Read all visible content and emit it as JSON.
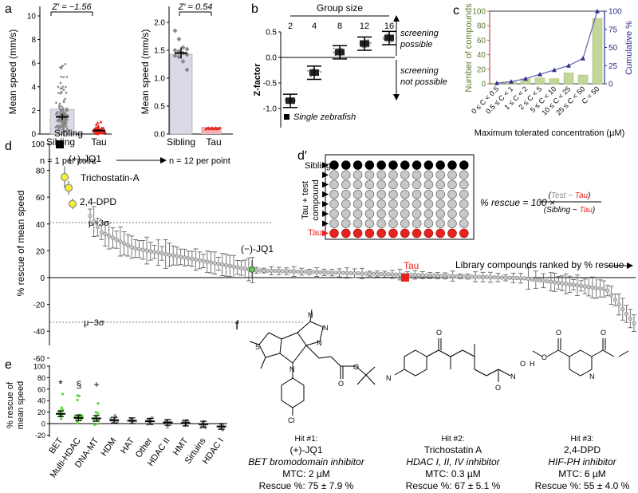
{
  "panels": {
    "a": {
      "label": "a",
      "plot1": {
        "zprime": "Z′ = −1.56",
        "ylabel": "Mean speed (mm/s)",
        "yticks": [
          "0",
          "2",
          "4",
          "6",
          "8",
          "10"
        ],
        "categories": [
          "Sibling",
          "Tau"
        ]
      },
      "plot2": {
        "zprime": "Z′ = 0.54",
        "ylabel": "Mean speed (mm/s)",
        "yticks": [
          "0.0",
          "0.5",
          "1.0",
          "1.5",
          "2.0"
        ],
        "categories": [
          "Sibling",
          "Tau"
        ]
      },
      "n_left": "n = 1 per point",
      "n_right": "n = 12 per point"
    },
    "b": {
      "label": "b",
      "group_size_label": "Group size",
      "ylabel": "Z-factor",
      "xticks": [
        "2",
        "4",
        "8",
        "12",
        "16"
      ],
      "yticks": [
        "-1.0",
        "-0.5",
        "0.0",
        "0.5"
      ],
      "screening_possible": [
        "screening",
        "possible"
      ],
      "screening_not_possible": [
        "screening",
        "not possible"
      ],
      "legend": "Single zebrafish"
    },
    "c": {
      "label": "c",
      "ylabel_left": "Number of compounds",
      "ylabel_right": "Cumulative %",
      "xlabel": "Maximum tolerated concentration (µM)",
      "yticks_left": [
        "0",
        "20",
        "40",
        "60",
        "80",
        "100"
      ],
      "yticks_right": [
        "0",
        "25",
        "50",
        "75",
        "100"
      ],
      "categories": [
        "0 ≤ C < 0.5",
        "0.5 ≤ C < 1",
        "1 ≤ C < 2",
        "2 ≤ C < 5",
        "5 ≤ C < 10",
        "10 ≤ C < 25",
        "25 ≤ C < 50",
        "C = 50"
      ]
    },
    "d": {
      "label": "d",
      "ylabel": "% rescue of mean speed",
      "yticks": [
        "-60",
        "-40",
        "-20",
        "0",
        "20",
        "40",
        "60",
        "80",
        "100"
      ],
      "sibling": "Sibling",
      "jq1_plus": "(+)-JQ1",
      "tsa": "Trichostatin-A",
      "dpd": "2,4-DPD",
      "mu_plus": "μ+3σ",
      "mu_minus": "μ−3σ",
      "jq1_minus": "(−)-JQ1",
      "tau": "Tau",
      "ranked": "Library compounds ranked by % rescue"
    },
    "dprime": {
      "label": "d′",
      "sibling": "Sibling",
      "tau_test": [
        "Tau + test",
        "compound"
      ],
      "tau": "Tau",
      "formula_lhs": "% rescue = 100 ×",
      "num_test": "Test",
      "num_minus": " − ",
      "num_tau": "Tau",
      "den_sibling": "Sibling",
      "den_minus": " − ",
      "den_tau": "Tau"
    },
    "e": {
      "label": "e",
      "ylabel": [
        "% rescue of",
        "mean speed"
      ],
      "yticks": [
        "-20",
        "0",
        "20",
        "40",
        "60",
        "80",
        "100"
      ],
      "categories": [
        "BET",
        "Multi-HDAC",
        "DNA-MT",
        "HDM",
        "HAT",
        "Other",
        "HDAC II",
        "HMT",
        "Sirtuins",
        "HDAC I"
      ],
      "marks": [
        "*",
        "§",
        "+"
      ]
    },
    "f": {
      "label": "f",
      "hits": [
        {
          "hit": "Hit #1:",
          "name": "(+)-JQ1",
          "target": "BET bromodomain inhibitor",
          "mtc": "MTC: 2 µM",
          "rescue": "Rescue %: 75 ± 7.9 %"
        },
        {
          "hit": "Hit #2:",
          "name": "Trichostatin A",
          "target": "HDAC I, II, IV inhibitor",
          "mtc": "MTC: 0.3 µM",
          "rescue": "Rescue %: 67 ± 5.1 %"
        },
        {
          "hit": "Hit #3:",
          "name": "2,4-DPD",
          "target": "HIF-PH inhibitor",
          "mtc": "MTC: 6 µM",
          "rescue": "Rescue %: 55 ± 4.0 %"
        }
      ],
      "atoms": [
        "N",
        "N",
        "N",
        "S",
        "N",
        "O",
        "O",
        "Cl",
        "N",
        "O",
        "N",
        "O",
        "H",
        "O",
        "O",
        "O",
        "N",
        "O"
      ]
    }
  },
  "chart_data": [
    {
      "type": "bar",
      "categories": [
        "0 ≤ C < 0.5",
        "0.5 ≤ C < 1",
        "1 ≤ C < 2",
        "2 ≤ C < 5",
        "5 ≤ C < 10",
        "10 ≤ C < 25",
        "25 ≤ C < 50",
        "C = 50"
      ],
      "series": [
        {
          "name": "Number of compounds",
          "values": [
            1,
            3,
            7,
            8,
            7,
            15,
            12,
            90
          ]
        },
        {
          "name": "Cumulative %",
          "values": [
            1,
            3,
            7,
            13,
            19,
            25,
            35,
            100
          ]
        }
      ],
      "ylim": [
        0,
        100
      ]
    },
    {
      "type": "scatter",
      "x": [
        "2",
        "4",
        "8",
        "12",
        "16"
      ],
      "values": [
        -0.85,
        -0.3,
        0.1,
        0.27,
        0.38
      ],
      "ylim": [
        -1.25,
        0.75
      ]
    },
    {
      "type": "scatter",
      "categories": [
        "BET",
        "Multi-HDAC",
        "DNA-MT",
        "HDM",
        "HAT",
        "Other",
        "HDAC II",
        "HMT",
        "Sirtuins",
        "HDAC I"
      ],
      "values": [
        17,
        10,
        9,
        6,
        5,
        4,
        2,
        1,
        -1,
        -5
      ],
      "ylim": [
        -20,
        100
      ]
    },
    {
      "type": "scatter",
      "categories": [
        "Sibling",
        "(+)-JQ1",
        "Trichostatin-A",
        "2,4-DPD",
        "(−)-JQ1",
        "Tau"
      ],
      "values": [
        100,
        75,
        67,
        55,
        6,
        0
      ],
      "ylim": [
        -60,
        100
      ]
    }
  ]
}
